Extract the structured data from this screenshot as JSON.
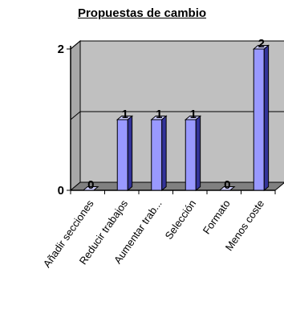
{
  "chart_data": {
    "type": "bar",
    "title": "Propuestas de cambio",
    "categories": [
      "Añadir secciones",
      "Reducir trabajos",
      "Aumentar trab...",
      "Selección",
      "Formato",
      "Menos coste"
    ],
    "values": [
      0,
      1,
      1,
      1,
      0,
      2
    ],
    "y_tick_labels": [
      "0",
      "2"
    ],
    "ylim": [
      0,
      2
    ],
    "grid": true,
    "legend": "none",
    "colors": {
      "bar_front": "#9999ff",
      "bar_top": "#ccccff",
      "bar_side": "#333399",
      "wall": "#c0c0c0",
      "outline": "#000000"
    }
  }
}
